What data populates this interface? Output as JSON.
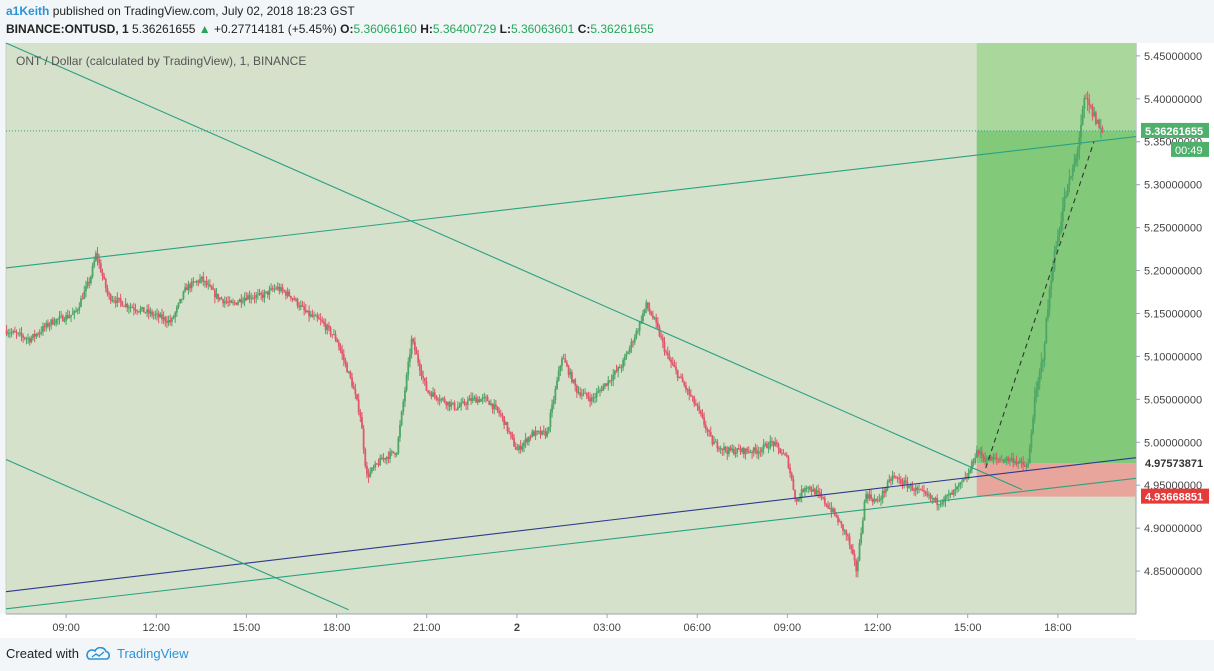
{
  "header": {
    "author": "a1Keith",
    "published_text": "published on TradingView.com, July 02, 2018 18:23 GST",
    "symbol": "BINANCE:ONTUSD, 1",
    "last": "5.36261655",
    "change_arrow": "▲",
    "change": "+0.27714181 (+5.45%)",
    "open_label": "O:",
    "open": "5.36066160",
    "high_label": "H:",
    "high": "5.36400729",
    "low_label": "L:",
    "low": "5.36063601",
    "close_label": "C:",
    "close": "5.36261655"
  },
  "footer": {
    "created_with": "Created with",
    "brand": "TradingView"
  },
  "colors": {
    "bg": "#d6e1cc",
    "candle_up": "#4da566",
    "candle_down": "#e0566a",
    "trend": "#2aa283",
    "support_blue": "#2b3a8c",
    "profit_zone": "#82c97a",
    "profit_zone_light": "#a9d79c",
    "stop_zone": "#e8a59c",
    "price_box": "#4fb06b",
    "stop_box": "#e53a3a"
  },
  "chart_data": {
    "type": "candlestick",
    "title": "ONT / Dollar (calculated by TradingView), 1, BINANCE",
    "ylim": [
      4.8,
      5.465
    ],
    "y_ticks": [
      "5.45000000",
      "5.40000000",
      "5.35000000",
      "5.30000000",
      "5.25000000",
      "5.20000000",
      "5.15000000",
      "5.10000000",
      "5.05000000",
      "5.00000000",
      "4.95000000",
      "4.90000000",
      "4.85000000"
    ],
    "y_tick_values": [
      5.45,
      5.4,
      5.35,
      5.3,
      5.25,
      5.2,
      5.15,
      5.1,
      5.05,
      5.0,
      4.95,
      4.9,
      4.85
    ],
    "x_ticks": [
      "09:00",
      "12:00",
      "15:00",
      "18:00",
      "21:00",
      "2",
      "03:00",
      "06:00",
      "09:00",
      "12:00",
      "15:00",
      "18:00"
    ],
    "x_tick_hours": [
      9,
      12,
      15,
      18,
      21,
      24,
      27,
      30,
      33,
      36,
      39,
      42
    ],
    "xlim_hours": [
      7.0,
      44.6
    ],
    "path": [
      [
        7.0,
        5.13
      ],
      [
        7.8,
        5.12
      ],
      [
        8.5,
        5.14
      ],
      [
        9.3,
        5.15
      ],
      [
        9.8,
        5.19
      ],
      [
        10.0,
        5.22
      ],
      [
        10.4,
        5.17
      ],
      [
        11.0,
        5.16
      ],
      [
        11.8,
        5.15
      ],
      [
        12.5,
        5.14
      ],
      [
        13.0,
        5.18
      ],
      [
        13.5,
        5.19
      ],
      [
        14.0,
        5.17
      ],
      [
        14.5,
        5.16
      ],
      [
        15.0,
        5.17
      ],
      [
        15.5,
        5.17
      ],
      [
        16.0,
        5.18
      ],
      [
        16.5,
        5.17
      ],
      [
        17.0,
        5.15
      ],
      [
        17.5,
        5.14
      ],
      [
        18.0,
        5.12
      ],
      [
        18.5,
        5.07
      ],
      [
        18.8,
        5.03
      ],
      [
        19.0,
        4.96
      ],
      [
        19.5,
        4.98
      ],
      [
        20.0,
        4.99
      ],
      [
        20.5,
        5.12
      ],
      [
        21.0,
        5.06
      ],
      [
        21.5,
        5.05
      ],
      [
        22.0,
        5.04
      ],
      [
        22.5,
        5.05
      ],
      [
        23.0,
        5.05
      ],
      [
        23.5,
        5.03
      ],
      [
        24.0,
        4.99
      ],
      [
        24.5,
        5.01
      ],
      [
        25.0,
        5.01
      ],
      [
        25.5,
        5.1
      ],
      [
        26.0,
        5.06
      ],
      [
        26.5,
        5.05
      ],
      [
        27.0,
        5.07
      ],
      [
        27.5,
        5.09
      ],
      [
        28.0,
        5.13
      ],
      [
        28.3,
        5.16
      ],
      [
        28.6,
        5.14
      ],
      [
        29.0,
        5.1
      ],
      [
        29.5,
        5.07
      ],
      [
        30.0,
        5.04
      ],
      [
        30.5,
        5.0
      ],
      [
        31.0,
        4.99
      ],
      [
        31.5,
        4.99
      ],
      [
        32.0,
        4.99
      ],
      [
        32.5,
        5.0
      ],
      [
        33.0,
        4.98
      ],
      [
        33.3,
        4.93
      ],
      [
        33.6,
        4.95
      ],
      [
        34.0,
        4.94
      ],
      [
        34.5,
        4.92
      ],
      [
        35.0,
        4.89
      ],
      [
        35.3,
        4.85
      ],
      [
        35.6,
        4.94
      ],
      [
        36.0,
        4.93
      ],
      [
        36.5,
        4.96
      ],
      [
        37.0,
        4.95
      ],
      [
        37.5,
        4.94
      ],
      [
        38.0,
        4.93
      ],
      [
        38.5,
        4.94
      ],
      [
        39.0,
        4.96
      ],
      [
        39.3,
        4.99
      ],
      [
        39.6,
        4.98
      ],
      [
        40.0,
        4.98
      ],
      [
        40.5,
        4.98
      ],
      [
        41.0,
        4.97
      ],
      [
        41.2,
        5.04
      ],
      [
        41.5,
        5.1
      ],
      [
        41.8,
        5.2
      ],
      [
        42.2,
        5.28
      ],
      [
        42.6,
        5.33
      ],
      [
        42.9,
        5.4
      ],
      [
        43.2,
        5.38
      ],
      [
        43.5,
        5.36
      ]
    ],
    "annotations": {
      "last_price": 5.36261655,
      "last_price_label": "5.36261655",
      "countdown_label": "00:49",
      "entry_price": 4.97573871,
      "entry_price_label": "4.97573871",
      "stop_price": 4.93668851,
      "stop_price_label": "4.93668851",
      "position_start_hour": 39.3,
      "position_end_hour": 44.6,
      "target_price": 5.465
    },
    "trendlines": [
      {
        "kind": "descending-main",
        "from": [
          7.0,
          5.465
        ],
        "to": [
          40.8,
          4.945
        ]
      },
      {
        "kind": "ascending-top",
        "from": [
          7.0,
          5.203
        ],
        "to": [
          44.6,
          5.356
        ]
      },
      {
        "kind": "support-blue",
        "from": [
          7.0,
          4.826
        ],
        "to": [
          44.6,
          4.982
        ]
      },
      {
        "kind": "support-green",
        "from": [
          7.0,
          4.806
        ],
        "to": [
          44.6,
          4.958
        ]
      },
      {
        "kind": "descending-low",
        "from": [
          7.0,
          4.98
        ],
        "to": [
          18.4,
          4.805
        ]
      },
      {
        "kind": "projection",
        "from": [
          39.6,
          4.97
        ],
        "to": [
          43.2,
          5.35
        ],
        "dashed": true
      }
    ]
  }
}
